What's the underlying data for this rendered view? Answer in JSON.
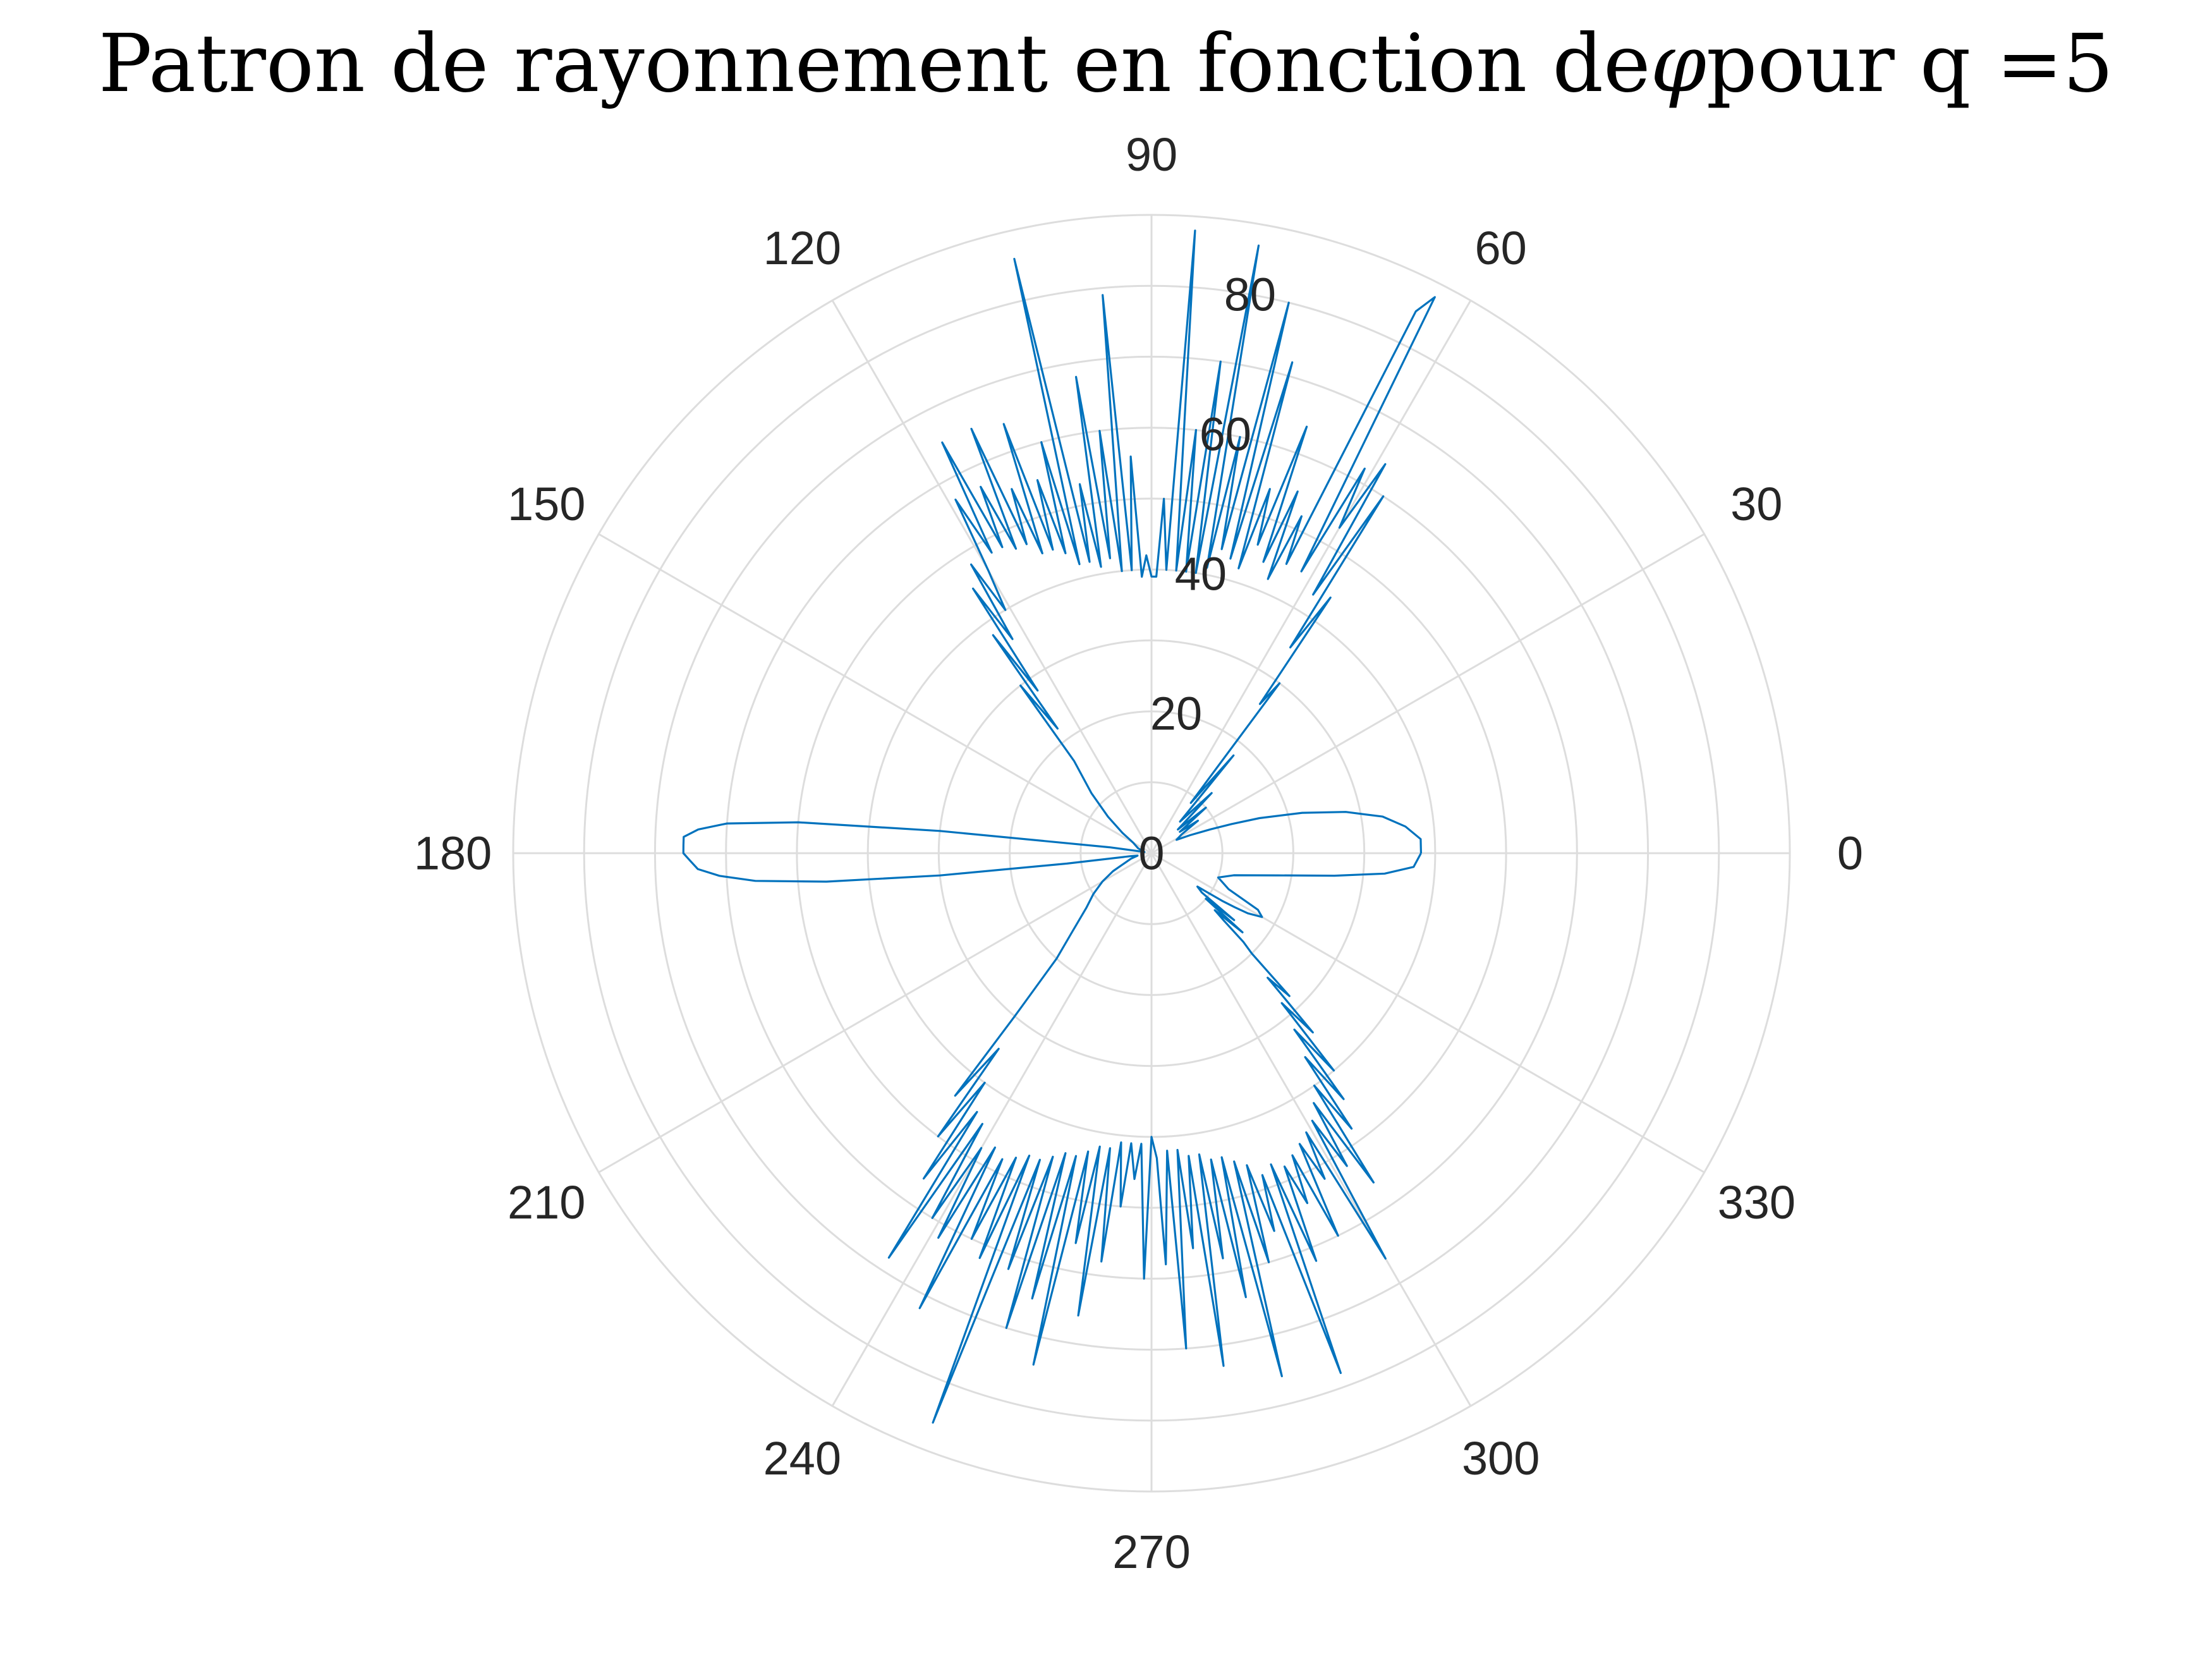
{
  "title_parts": {
    "before": "Patron de rayonnement en fonction de ",
    "symbol": "φ",
    "after": " pour q =5"
  },
  "chart_data": {
    "type": "polar-line",
    "title": "Patron de rayonnement en fonction de φ pour q =5",
    "angle_unit": "degrees",
    "theta_ticks": [
      "0",
      "30",
      "60",
      "90",
      "120",
      "150",
      "180",
      "210",
      "240",
      "270",
      "300",
      "330"
    ],
    "r_ticks": [
      "0",
      "20",
      "40",
      "60",
      "80"
    ],
    "rlim": [
      0,
      90
    ],
    "grid": true,
    "line_color": "#0072BD",
    "grid_color": "#dddddd",
    "series": [
      {
        "points": [
          [
            0,
            38
          ],
          [
            3,
            38
          ],
          [
            6,
            36
          ],
          [
            9,
            33
          ],
          [
            12,
            28
          ],
          [
            15,
            22
          ],
          [
            18,
            16
          ],
          [
            20,
            12
          ],
          [
            22,
            9
          ],
          [
            25,
            6
          ],
          [
            28,
            4
          ],
          [
            32,
            5
          ],
          [
            35,
            8
          ],
          [
            37,
            5
          ],
          [
            40,
            10
          ],
          [
            42,
            5
          ],
          [
            45,
            12
          ],
          [
            48,
            6
          ],
          [
            50,
            18
          ],
          [
            52,
            9
          ],
          [
            53,
            30
          ],
          [
            54,
            26
          ],
          [
            55,
            44
          ],
          [
            56,
            35
          ],
          [
            57,
            60
          ],
          [
            58,
            43
          ],
          [
            59,
            64
          ],
          [
            60,
            53
          ],
          [
            61,
            62
          ],
          [
            62,
            45
          ],
          [
            63,
            88
          ],
          [
            64,
            85
          ],
          [
            65,
            45
          ],
          [
            66,
            52
          ],
          [
            67,
            42
          ],
          [
            68,
            55
          ],
          [
            69,
            44
          ],
          [
            70,
            64
          ],
          [
            71,
            46
          ],
          [
            72,
            54
          ],
          [
            73,
            42
          ],
          [
            74,
            72
          ],
          [
            75,
            43
          ],
          [
            76,
            80
          ],
          [
            77,
            44
          ],
          [
            78,
            60
          ],
          [
            79,
            41
          ],
          [
            80,
            87
          ],
          [
            81,
            40
          ],
          [
            82,
            70
          ],
          [
            83,
            40
          ],
          [
            84,
            60
          ],
          [
            85,
            40
          ],
          [
            86,
            88
          ],
          [
            87,
            40
          ],
          [
            88,
            50
          ],
          [
            89,
            39
          ],
          [
            90,
            39
          ],
          [
            91,
            42
          ],
          [
            92,
            39
          ],
          [
            93,
            56
          ],
          [
            94,
            40
          ],
          [
            95,
            79
          ],
          [
            96,
            40
          ],
          [
            97,
            60
          ],
          [
            98,
            42
          ],
          [
            99,
            68
          ],
          [
            100,
            41
          ],
          [
            101,
            53
          ],
          [
            102,
            42
          ],
          [
            103,
            86
          ],
          [
            104,
            42
          ],
          [
            105,
            60
          ],
          [
            106,
            44
          ],
          [
            107,
            55
          ],
          [
            108,
            45
          ],
          [
            109,
            64
          ],
          [
            110,
            45
          ],
          [
            111,
            55
          ],
          [
            112,
            47
          ],
          [
            113,
            65
          ],
          [
            114,
            47
          ],
          [
            115,
            57
          ],
          [
            116,
            48
          ],
          [
            117,
            65
          ],
          [
            118,
            48
          ],
          [
            119,
            57
          ],
          [
            120,
            46
          ],
          [
            121,
            40
          ],
          [
            122,
            48
          ],
          [
            123,
            36
          ],
          [
            124,
            45
          ],
          [
            125,
            28
          ],
          [
            126,
            38
          ],
          [
            127,
            22
          ],
          [
            128,
            30
          ],
          [
            130,
            17
          ],
          [
            135,
            12
          ],
          [
            140,
            8
          ],
          [
            145,
            5
          ],
          [
            150,
            3
          ],
          [
            160,
            2
          ],
          [
            170,
            1
          ],
          [
            172,
            6
          ],
          [
            174,
            30
          ],
          [
            175,
            50
          ],
          [
            176,
            60
          ],
          [
            177,
            64
          ],
          [
            178,
            66
          ],
          [
            179,
            66
          ],
          [
            180,
            66
          ],
          [
            181,
            65
          ],
          [
            182,
            64
          ],
          [
            183,
            61
          ],
          [
            184,
            56
          ],
          [
            185,
            46
          ],
          [
            186,
            30
          ],
          [
            187,
            12
          ],
          [
            188,
            3
          ],
          [
            190,
            2
          ],
          [
            195,
            3
          ],
          [
            200,
            4
          ],
          [
            205,
            6
          ],
          [
            210,
            8
          ],
          [
            215,
            10
          ],
          [
            220,
            12
          ],
          [
            225,
            16
          ],
          [
            228,
            20
          ],
          [
            230,
            30
          ],
          [
            231,
            44
          ],
          [
            232,
            35
          ],
          [
            233,
            50
          ],
          [
            234,
            40
          ],
          [
            235,
            56
          ],
          [
            236,
            44
          ],
          [
            237,
            68
          ],
          [
            238,
            45
          ],
          [
            239,
            60
          ],
          [
            240,
            48
          ],
          [
            241,
            62
          ],
          [
            242,
            47
          ],
          [
            243,
            72
          ],
          [
            244,
            48
          ],
          [
            245,
            60
          ],
          [
            246,
            47
          ],
          [
            247,
            62
          ],
          [
            248,
            46
          ],
          [
            249,
            86
          ],
          [
            250,
            46
          ],
          [
            251,
            62
          ],
          [
            252,
            45
          ],
          [
            253,
            70
          ],
          [
            254,
            44
          ],
          [
            255,
            65
          ],
          [
            256,
            44
          ],
          [
            257,
            74
          ],
          [
            258,
            43
          ],
          [
            259,
            56
          ],
          [
            260,
            42
          ],
          [
            261,
            66
          ],
          [
            262,
            42
          ],
          [
            263,
            58
          ],
          [
            264,
            41
          ],
          [
            265,
            50
          ],
          [
            266,
            41
          ],
          [
            267,
            46
          ],
          [
            268,
            41
          ],
          [
            269,
            60
          ],
          [
            270,
            40
          ],
          [
            271,
            43
          ],
          [
            272,
            58
          ],
          [
            273,
            42
          ],
          [
            274,
            70
          ],
          [
            275,
            42
          ],
          [
            276,
            56
          ],
          [
            277,
            43
          ],
          [
            278,
            73
          ],
          [
            279,
            43
          ],
          [
            280,
            58
          ],
          [
            281,
            44
          ],
          [
            282,
            64
          ],
          [
            283,
            44
          ],
          [
            284,
            76
          ],
          [
            285,
            45
          ],
          [
            286,
            60
          ],
          [
            287,
            46
          ],
          [
            288,
            56
          ],
          [
            289,
            48
          ],
          [
            290,
            78
          ],
          [
            291,
            47
          ],
          [
            292,
            62
          ],
          [
            293,
            48
          ],
          [
            294,
            54
          ],
          [
            295,
            47
          ],
          [
            296,
            60
          ],
          [
            297,
            46
          ],
          [
            298,
            52
          ],
          [
            299,
            45
          ],
          [
            300,
            66
          ],
          [
            301,
            44
          ],
          [
            302,
            52
          ],
          [
            303,
            42
          ],
          [
            304,
            56
          ],
          [
            305,
            40
          ],
          [
            306,
            48
          ],
          [
            307,
            36
          ],
          [
            308,
            44
          ],
          [
            309,
            32
          ],
          [
            310,
            40
          ],
          [
            311,
            28
          ],
          [
            312,
            34
          ],
          [
            313,
            24
          ],
          [
            314,
            28
          ],
          [
            315,
            20
          ],
          [
            316,
            18
          ],
          [
            317,
            14
          ],
          [
            318,
            12
          ],
          [
            319,
            17
          ],
          [
            320,
            10
          ],
          [
            321,
            15
          ],
          [
            322,
            9
          ],
          [
            324,
            8
          ],
          [
            326,
            12
          ],
          [
            327,
            14
          ],
          [
            328,
            16
          ],
          [
            330,
            18
          ],
          [
            332,
            17
          ],
          [
            335,
            12
          ],
          [
            340,
            10
          ],
          [
            345,
            12
          ],
          [
            350,
            18
          ],
          [
            353,
            26
          ],
          [
            355,
            33
          ],
          [
            357,
            37
          ],
          [
            360,
            38
          ]
        ]
      }
    ]
  }
}
